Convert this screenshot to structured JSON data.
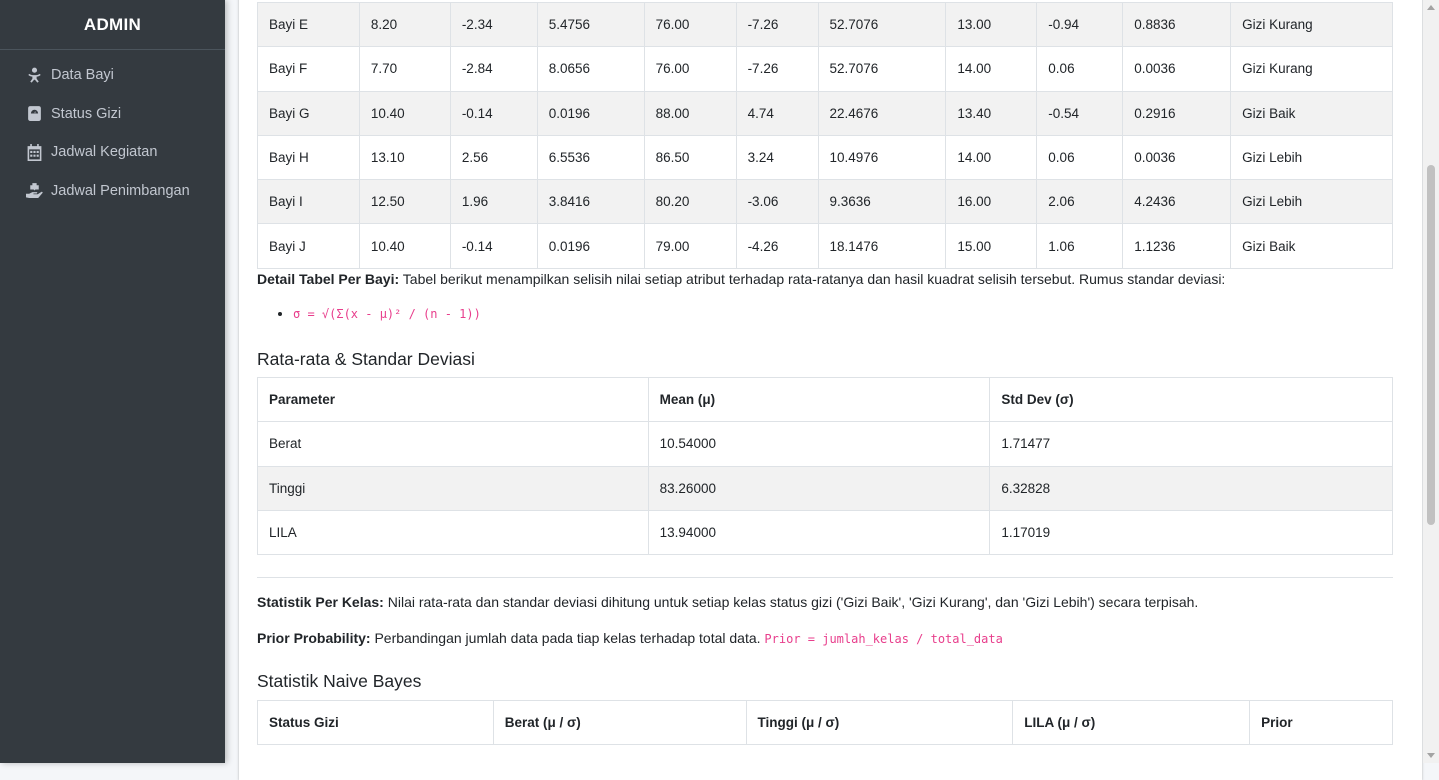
{
  "brand": "ADMIN",
  "sidebar": {
    "items": [
      {
        "label": "Data Bayi",
        "icon": "baby-icon"
      },
      {
        "label": "Status Gizi",
        "icon": "scale-icon"
      },
      {
        "label": "Jadwal Kegiatan",
        "icon": "calendar-icon"
      },
      {
        "label": "Jadwal Penimbangan",
        "icon": "hand-holding-icon"
      }
    ]
  },
  "detail_table": {
    "rows": [
      [
        "Bayi E",
        "8.20",
        "-2.34",
        "5.4756",
        "76.00",
        "-7.26",
        "52.7076",
        "13.00",
        "-0.94",
        "0.8836",
        "Gizi Kurang"
      ],
      [
        "Bayi F",
        "7.70",
        "-2.84",
        "8.0656",
        "76.00",
        "-7.26",
        "52.7076",
        "14.00",
        "0.06",
        "0.0036",
        "Gizi Kurang"
      ],
      [
        "Bayi G",
        "10.40",
        "-0.14",
        "0.0196",
        "88.00",
        "4.74",
        "22.4676",
        "13.40",
        "-0.54",
        "0.2916",
        "Gizi Baik"
      ],
      [
        "Bayi H",
        "13.10",
        "2.56",
        "6.5536",
        "86.50",
        "3.24",
        "10.4976",
        "14.00",
        "0.06",
        "0.0036",
        "Gizi Lebih"
      ],
      [
        "Bayi I",
        "12.50",
        "1.96",
        "3.8416",
        "80.20",
        "-3.06",
        "9.3636",
        "16.00",
        "2.06",
        "4.2436",
        "Gizi Lebih"
      ],
      [
        "Bayi J",
        "10.40",
        "-0.14",
        "0.0196",
        "79.00",
        "-4.26",
        "18.1476",
        "15.00",
        "1.06",
        "1.1236",
        "Gizi Baik"
      ]
    ]
  },
  "detail_note": {
    "bold": "Detail Tabel Per Bayi:",
    "text": " Tabel berikut menampilkan selisih nilai setiap atribut terhadap rata-ratanya dan hasil kuadrat selisih tersebut. Rumus standar deviasi:",
    "formula": "σ = √(Σ(x - μ)² / (n - 1))"
  },
  "mean_section": {
    "title": "Rata-rata & Standar Deviasi",
    "headers": [
      "Parameter",
      "Mean (μ)",
      "Std Dev (σ)"
    ],
    "rows": [
      [
        "Berat",
        "10.54000",
        "1.71477"
      ],
      [
        "Tinggi",
        "83.26000",
        "6.32828"
      ],
      [
        "LILA",
        "13.94000",
        "1.17019"
      ]
    ]
  },
  "class_note": {
    "bold": "Statistik Per Kelas:",
    "text": " Nilai rata-rata dan standar deviasi dihitung untuk setiap kelas status gizi ('Gizi Baik', 'Gizi Kurang', dan 'Gizi Lebih') secara terpisah."
  },
  "prior_note": {
    "bold": "Prior Probability:",
    "text": " Perbandingan jumlah data pada tiap kelas terhadap total data. ",
    "formula": "Prior = jumlah_kelas / total_data"
  },
  "nb_section": {
    "title": "Statistik Naive Bayes",
    "headers": [
      "Status Gizi",
      "Berat (μ / σ)",
      "Tinggi (μ / σ)",
      "LILA (μ / σ)",
      "Prior"
    ]
  }
}
